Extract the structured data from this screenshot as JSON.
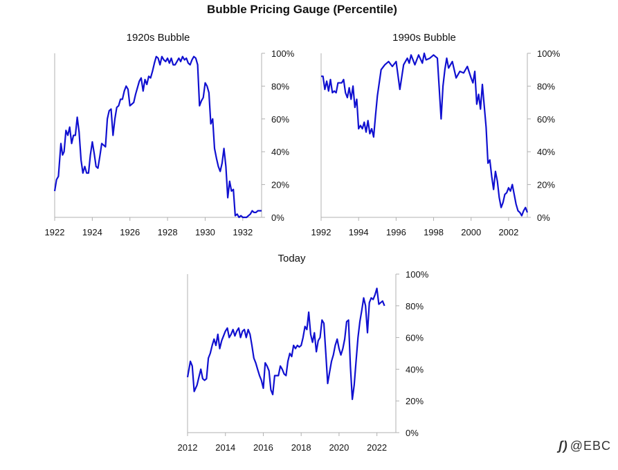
{
  "title": "Bubble Pricing Gauge (Percentile)",
  "watermark": "@EBC",
  "style": {
    "line_color": "#1010d0",
    "axis_color": "#b0b0b0"
  },
  "chart_data": [
    {
      "type": "line",
      "title": "1920s Bubble",
      "xlim": [
        1922,
        1933.0
      ],
      "x_ticks": [
        1922,
        1924,
        1926,
        1928,
        1930,
        1932
      ],
      "ylim": [
        0,
        1
      ],
      "y_ticks": [
        "0%",
        "20%",
        "40%",
        "60%",
        "80%",
        "100%"
      ],
      "y_tick_values": [
        0,
        0.2,
        0.4,
        0.6,
        0.8,
        1.0
      ],
      "y_axis_side": "right",
      "series": [
        {
          "x": [
            1922.0,
            1922.1,
            1922.2,
            1922.33,
            1922.42,
            1922.5,
            1922.6,
            1922.7,
            1922.8,
            1922.9,
            1923.0,
            1923.1,
            1923.2,
            1923.3,
            1923.4,
            1923.5,
            1923.6,
            1923.7,
            1923.8,
            1923.9,
            1924.0,
            1924.1,
            1924.2,
            1924.3,
            1924.4,
            1924.5,
            1924.6,
            1924.7,
            1924.8,
            1924.9,
            1925.0,
            1925.1,
            1925.2,
            1925.3,
            1925.4,
            1925.5,
            1925.6,
            1925.7,
            1925.8,
            1925.9,
            1926.0,
            1926.1,
            1926.2,
            1926.3,
            1926.4,
            1926.5,
            1926.6,
            1926.7,
            1926.8,
            1926.9,
            1927.0,
            1927.1,
            1927.2,
            1927.3,
            1927.4,
            1927.5,
            1927.6,
            1927.7,
            1927.8,
            1927.9,
            1928.0,
            1928.1,
            1928.2,
            1928.3,
            1928.4,
            1928.5,
            1928.6,
            1928.7,
            1928.8,
            1928.9,
            1929.0,
            1929.1,
            1929.2,
            1929.3,
            1929.4,
            1929.5,
            1929.6,
            1929.7,
            1929.8,
            1929.9,
            1930.0,
            1930.1,
            1930.2,
            1930.3,
            1930.4,
            1930.5,
            1930.6,
            1930.7,
            1930.8,
            1930.9,
            1931.0,
            1931.1,
            1931.2,
            1931.3,
            1931.4,
            1931.5,
            1931.6,
            1931.7,
            1931.8,
            1931.9,
            1932.0,
            1932.1,
            1932.2,
            1932.3,
            1932.4,
            1932.5,
            1932.6,
            1932.7,
            1932.8,
            1932.9,
            1933.0
          ],
          "y": [
            0.16,
            0.23,
            0.25,
            0.45,
            0.38,
            0.4,
            0.53,
            0.5,
            0.55,
            0.45,
            0.5,
            0.5,
            0.61,
            0.52,
            0.35,
            0.27,
            0.31,
            0.27,
            0.27,
            0.38,
            0.46,
            0.39,
            0.31,
            0.3,
            0.37,
            0.45,
            0.44,
            0.43,
            0.6,
            0.65,
            0.66,
            0.5,
            0.6,
            0.67,
            0.68,
            0.72,
            0.72,
            0.77,
            0.8,
            0.78,
            0.68,
            0.69,
            0.7,
            0.75,
            0.79,
            0.83,
            0.85,
            0.77,
            0.84,
            0.81,
            0.86,
            0.85,
            0.89,
            0.94,
            0.98,
            0.97,
            0.93,
            0.98,
            0.96,
            0.95,
            0.97,
            0.94,
            0.97,
            0.93,
            0.93,
            0.95,
            0.97,
            0.95,
            0.98,
            0.96,
            0.97,
            0.94,
            0.93,
            0.96,
            0.98,
            0.97,
            0.93,
            0.68,
            0.71,
            0.73,
            0.82,
            0.8,
            0.76,
            0.57,
            0.6,
            0.42,
            0.36,
            0.31,
            0.28,
            0.33,
            0.42,
            0.31,
            0.12,
            0.22,
            0.16,
            0.17,
            0.01,
            0.02,
            0.0,
            0.01,
            0.0,
            0.0,
            0.0,
            0.01,
            0.02,
            0.04,
            0.03,
            0.03,
            0.04,
            0.04,
            0.04
          ],
          "name": ""
        }
      ]
    },
    {
      "type": "line",
      "title": "1990s Bubble",
      "xlim": [
        1992,
        2003.0
      ],
      "x_ticks": [
        1992,
        1994,
        1996,
        1998,
        2000,
        2002
      ],
      "ylim": [
        0,
        1
      ],
      "y_ticks": [
        "0%",
        "20%",
        "40%",
        "60%",
        "80%",
        "100%"
      ],
      "y_tick_values": [
        0,
        0.2,
        0.4,
        0.6,
        0.8,
        1.0
      ],
      "y_axis_side": "right",
      "series": [
        {
          "x": [
            1992.0,
            1992.1,
            1992.2,
            1992.3,
            1992.4,
            1992.5,
            1992.6,
            1992.7,
            1992.8,
            1992.9,
            1993.0,
            1993.1,
            1993.2,
            1993.3,
            1993.4,
            1993.5,
            1993.6,
            1993.7,
            1993.8,
            1993.9,
            1994.0,
            1994.1,
            1994.2,
            1994.3,
            1994.4,
            1994.5,
            1994.6,
            1994.7,
            1994.8,
            1994.9,
            1995.0,
            1995.2,
            1995.4,
            1995.6,
            1995.8,
            1996.0,
            1996.2,
            1996.4,
            1996.6,
            1996.7,
            1996.8,
            1997.0,
            1997.2,
            1997.4,
            1997.5,
            1997.6,
            1997.8,
            1998.0,
            1998.2,
            1998.4,
            1998.5,
            1998.6,
            1998.7,
            1998.8,
            1999.0,
            1999.2,
            1999.4,
            1999.6,
            1999.8,
            2000.0,
            2000.1,
            2000.2,
            2000.3,
            2000.4,
            2000.5,
            2000.6,
            2000.7,
            2000.8,
            2000.9,
            2001.0,
            2001.1,
            2001.2,
            2001.3,
            2001.4,
            2001.5,
            2001.6,
            2001.7,
            2001.8,
            2001.9,
            2002.0,
            2002.1,
            2002.2,
            2002.3,
            2002.4,
            2002.5,
            2002.6,
            2002.7,
            2002.8,
            2002.9,
            2003.0
          ],
          "y": [
            0.86,
            0.86,
            0.78,
            0.83,
            0.77,
            0.84,
            0.76,
            0.77,
            0.76,
            0.82,
            0.82,
            0.82,
            0.84,
            0.76,
            0.73,
            0.79,
            0.72,
            0.8,
            0.67,
            0.72,
            0.54,
            0.56,
            0.54,
            0.58,
            0.52,
            0.59,
            0.51,
            0.54,
            0.49,
            0.62,
            0.74,
            0.9,
            0.93,
            0.95,
            0.92,
            0.95,
            0.78,
            0.93,
            0.97,
            0.94,
            0.99,
            0.93,
            0.99,
            0.94,
            1.0,
            0.96,
            0.97,
            0.99,
            0.97,
            0.6,
            0.8,
            0.9,
            0.97,
            0.91,
            0.95,
            0.85,
            0.89,
            0.88,
            0.92,
            0.85,
            0.82,
            0.89,
            0.69,
            0.75,
            0.66,
            0.81,
            0.68,
            0.55,
            0.33,
            0.35,
            0.25,
            0.17,
            0.28,
            0.22,
            0.12,
            0.06,
            0.09,
            0.14,
            0.15,
            0.18,
            0.16,
            0.2,
            0.14,
            0.08,
            0.04,
            0.03,
            0.01,
            0.04,
            0.06,
            0.03
          ],
          "name": ""
        }
      ]
    },
    {
      "type": "line",
      "title": "Today",
      "xlim": [
        2012,
        2023.0
      ],
      "x_ticks": [
        2012,
        2014,
        2016,
        2018,
        2020,
        2022
      ],
      "ylim": [
        0,
        1
      ],
      "y_ticks": [
        "0%",
        "20%",
        "40%",
        "60%",
        "80%",
        "100%"
      ],
      "y_tick_values": [
        0,
        0.2,
        0.4,
        0.6,
        0.8,
        1.0
      ],
      "y_axis_side": "right",
      "series": [
        {
          "x": [
            2012.0,
            2012.15,
            2012.25,
            2012.35,
            2012.5,
            2012.6,
            2012.7,
            2012.8,
            2012.9,
            2013.0,
            2013.1,
            2013.2,
            2013.3,
            2013.4,
            2013.5,
            2013.6,
            2013.7,
            2013.8,
            2013.9,
            2014.0,
            2014.1,
            2014.2,
            2014.3,
            2014.4,
            2014.5,
            2014.6,
            2014.7,
            2014.8,
            2014.9,
            2015.0,
            2015.1,
            2015.2,
            2015.3,
            2015.4,
            2015.5,
            2015.6,
            2015.7,
            2015.8,
            2015.9,
            2016.0,
            2016.1,
            2016.2,
            2016.3,
            2016.4,
            2016.5,
            2016.6,
            2016.7,
            2016.8,
            2016.9,
            2017.0,
            2017.1,
            2017.2,
            2017.3,
            2017.4,
            2017.5,
            2017.6,
            2017.7,
            2017.8,
            2017.9,
            2018.0,
            2018.1,
            2018.2,
            2018.3,
            2018.4,
            2018.5,
            2018.6,
            2018.7,
            2018.8,
            2018.9,
            2019.0,
            2019.1,
            2019.2,
            2019.3,
            2019.4,
            2019.5,
            2019.6,
            2019.7,
            2019.8,
            2019.9,
            2020.0,
            2020.1,
            2020.2,
            2020.3,
            2020.4,
            2020.5,
            2020.6,
            2020.7,
            2020.8,
            2020.9,
            2021.0,
            2021.1,
            2021.2,
            2021.3,
            2021.4,
            2021.5,
            2021.6,
            2021.7,
            2021.8,
            2021.9,
            2022.0,
            2022.1,
            2022.2,
            2022.3,
            2022.4
          ],
          "y": [
            0.35,
            0.45,
            0.42,
            0.26,
            0.3,
            0.35,
            0.4,
            0.34,
            0.33,
            0.34,
            0.47,
            0.5,
            0.55,
            0.59,
            0.55,
            0.62,
            0.53,
            0.58,
            0.61,
            0.64,
            0.66,
            0.6,
            0.62,
            0.65,
            0.61,
            0.64,
            0.66,
            0.6,
            0.64,
            0.65,
            0.6,
            0.65,
            0.62,
            0.55,
            0.47,
            0.44,
            0.4,
            0.36,
            0.33,
            0.28,
            0.44,
            0.42,
            0.39,
            0.27,
            0.24,
            0.36,
            0.36,
            0.36,
            0.42,
            0.4,
            0.37,
            0.36,
            0.45,
            0.5,
            0.48,
            0.55,
            0.53,
            0.55,
            0.54,
            0.55,
            0.6,
            0.67,
            0.65,
            0.76,
            0.62,
            0.57,
            0.63,
            0.51,
            0.58,
            0.6,
            0.71,
            0.69,
            0.5,
            0.31,
            0.38,
            0.45,
            0.49,
            0.55,
            0.59,
            0.53,
            0.49,
            0.53,
            0.59,
            0.7,
            0.71,
            0.42,
            0.21,
            0.3,
            0.45,
            0.6,
            0.7,
            0.77,
            0.85,
            0.8,
            0.63,
            0.82,
            0.85,
            0.84,
            0.87,
            0.91,
            0.81,
            0.82,
            0.83,
            0.8
          ],
          "name": ""
        }
      ]
    }
  ]
}
